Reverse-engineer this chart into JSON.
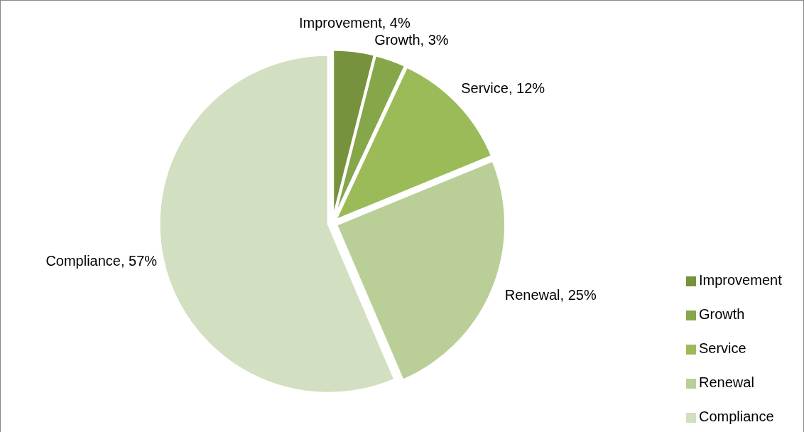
{
  "chart_data": {
    "type": "pie",
    "categories": [
      "Improvement",
      "Growth",
      "Service",
      "Renewal",
      "Compliance"
    ],
    "values": [
      4,
      3,
      12,
      25,
      57
    ],
    "value_labels": [
      "Improvement, 4%",
      "Growth, 3%",
      "Service, 12%",
      "Renewal, 25%",
      "Compliance, 57%"
    ],
    "colors": [
      "#76923c",
      "#86a64a",
      "#9bbb59",
      "#bacf97",
      "#d2dfc0"
    ],
    "legend": "right"
  }
}
